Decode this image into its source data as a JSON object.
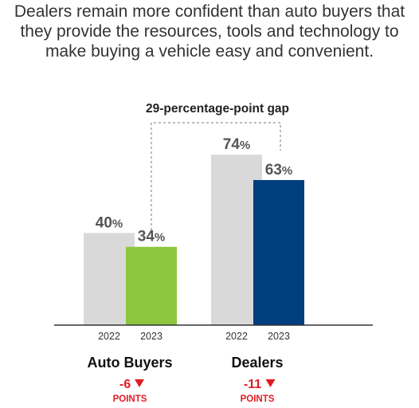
{
  "title_lines": [
    "Dealers remain more confident than auto buyers that",
    "they provide the resources, tools and technology to",
    "make buying a vehicle easy and convenient."
  ],
  "chart_data": {
    "type": "bar",
    "title": "Dealers remain more confident than auto buyers that they provide the resources, tools and technology to make buying a vehicle easy and convenient.",
    "unit": "%",
    "ylim": [
      0,
      100
    ],
    "grid": false,
    "annotation": "29-percentage-point gap",
    "groups": [
      {
        "name": "Auto Buyers",
        "change": "-6",
        "change_unit": "POINTS",
        "bars": [
          {
            "year": "2022",
            "value": 40,
            "label": "40",
            "color": "#d9d9d9"
          },
          {
            "year": "2023",
            "value": 34,
            "label": "34",
            "color": "#8dc63f"
          }
        ]
      },
      {
        "name": "Dealers",
        "change": "-11",
        "change_unit": "POINTS",
        "bars": [
          {
            "year": "2022",
            "value": 74,
            "label": "74",
            "color": "#d9d9d9"
          },
          {
            "year": "2023",
            "value": 63,
            "label": "63",
            "color": "#003f7f"
          }
        ]
      }
    ]
  }
}
